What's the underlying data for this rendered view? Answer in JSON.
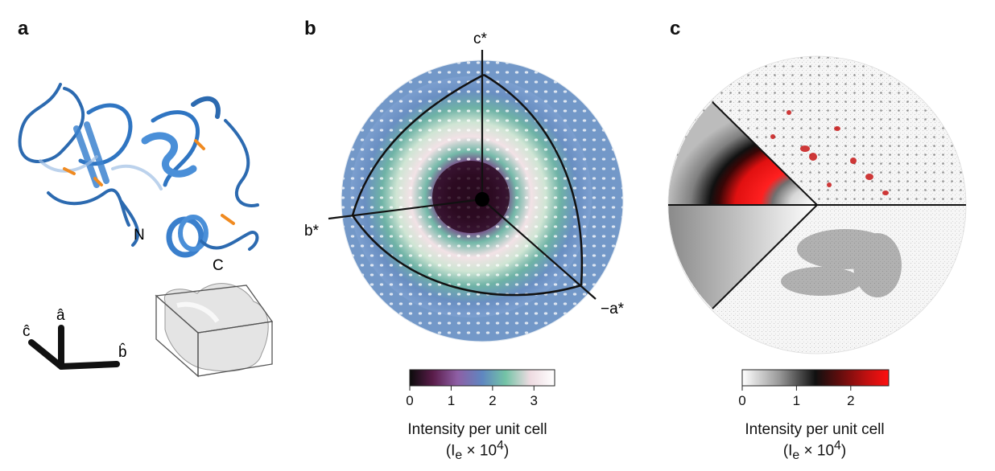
{
  "panels": {
    "a": {
      "letter": "a",
      "terminus_labels": [
        "N",
        "C"
      ],
      "axis_labels": {
        "c": "ĉ",
        "a": "â",
        "b": "b̂"
      }
    },
    "b": {
      "letter": "b",
      "axis_labels": {
        "c_star": "c*",
        "b_star": "b*",
        "minus_a_star": "−a*"
      },
      "colorbar": {
        "ticks": [
          "0",
          "1",
          "2",
          "3"
        ],
        "tick_values": [
          0,
          1,
          2,
          3
        ],
        "range": [
          0,
          3.5
        ],
        "colors": [
          "#0b0b0b",
          "#5a1c4a",
          "#8e5fa5",
          "#5f86c0",
          "#73c3a6",
          "#eedbe1",
          "#ffffff"
        ],
        "title_line1": "Intensity per unit cell",
        "title_line2_prefix": "(I",
        "title_line2_sub": "e",
        "title_line2_suffix": " × 10",
        "title_line2_sup": "4",
        "title_line2_close": ")"
      }
    },
    "c": {
      "letter": "c",
      "colorbar": {
        "ticks": [
          "0",
          "1",
          "2"
        ],
        "tick_values": [
          0,
          1,
          2
        ],
        "range": [
          0,
          2.7
        ],
        "colors": [
          "#ffffff",
          "#9a9a9a",
          "#101010",
          "#5a0d0d",
          "#c01010",
          "#ff1010"
        ],
        "title_line1": "Intensity per unit cell",
        "title_line2_prefix": "(I",
        "title_line2_sub": "e",
        "title_line2_suffix": " × 10",
        "title_line2_sup": "4",
        "title_line2_close": ")"
      }
    }
  }
}
